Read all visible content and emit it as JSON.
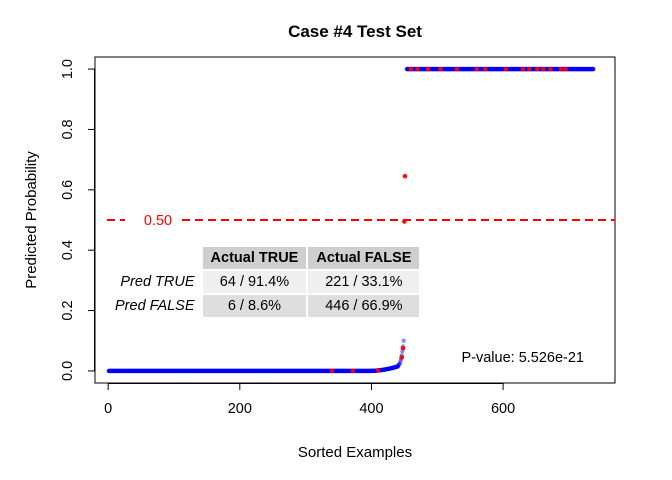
{
  "chart_data": {
    "type": "scatter",
    "title": "Case #4 Test Set",
    "xlabel": "Sorted Examples",
    "ylabel": "Predicted Probability",
    "xlim": [
      -20,
      770
    ],
    "ylim": [
      -0.04,
      1.04
    ],
    "x_ticks": [
      0,
      200,
      400,
      600
    ],
    "y_ticks": [
      0.0,
      0.2,
      0.4,
      0.6,
      0.8,
      1.0
    ],
    "n_points": 737,
    "colors": {
      "positive": "#ff0000",
      "negative": "#0000ff",
      "threshold": "#ff0000"
    },
    "threshold": {
      "value": 0.5,
      "label": "0.50",
      "style": "dashed"
    },
    "series": [
      {
        "description": "blue",
        "segments": [
          {
            "x_range": [
              1,
              395
            ],
            "y": 0.0
          },
          {
            "x_range": [
              396,
              440
            ],
            "y_range": [
              0.0,
              0.015
            ]
          },
          {
            "x_range": [
              441,
              449
            ],
            "y_range": [
              0.02,
              0.1
            ]
          },
          {
            "x_range": [
              454,
              737
            ],
            "y": 1.0
          }
        ]
      },
      {
        "description": "red",
        "points": [
          {
            "x": 340,
            "y": 0.0
          },
          {
            "x": 372,
            "y": 0.0
          },
          {
            "x": 410,
            "y": 0.002
          },
          {
            "x": 446,
            "y": 0.045
          },
          {
            "x": 448,
            "y": 0.075
          },
          {
            "x": 450,
            "y": 0.495
          },
          {
            "x": 451,
            "y": 0.645
          },
          {
            "x": 460,
            "y": 1.0
          },
          {
            "x": 470,
            "y": 1.0
          },
          {
            "x": 486,
            "y": 1.0
          },
          {
            "x": 505,
            "y": 1.0
          },
          {
            "x": 530,
            "y": 1.0
          },
          {
            "x": 560,
            "y": 1.0
          },
          {
            "x": 573,
            "y": 1.0
          },
          {
            "x": 604,
            "y": 1.0
          },
          {
            "x": 630,
            "y": 1.0
          },
          {
            "x": 640,
            "y": 1.0
          },
          {
            "x": 652,
            "y": 1.0
          },
          {
            "x": 661,
            "y": 1.0
          },
          {
            "x": 672,
            "y": 1.0
          },
          {
            "x": 688,
            "y": 1.0
          },
          {
            "x": 695,
            "y": 1.0
          }
        ]
      }
    ],
    "confusion_table": {
      "col_headers": [
        "Actual TRUE",
        "Actual FALSE"
      ],
      "rows": [
        {
          "label": "Pred TRUE",
          "values": [
            "64 / 91.4%",
            "221 / 33.1%"
          ]
        },
        {
          "label": "Pred FALSE",
          "values": [
            "6 / 8.6%",
            "446 / 66.9%"
          ]
        }
      ]
    },
    "annotation": "P-value: 5.526e-21"
  }
}
